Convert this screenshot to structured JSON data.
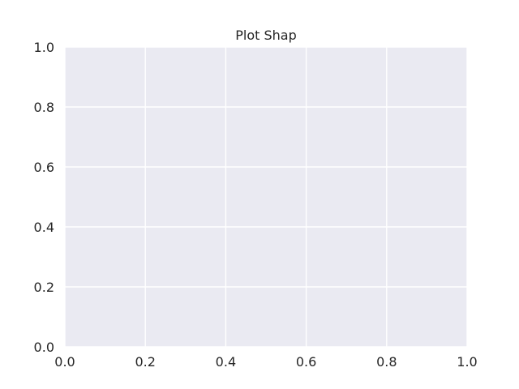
{
  "chart_data": {
    "type": "line",
    "title": "Plot Shap",
    "xlabel": "",
    "ylabel": "",
    "xlim": [
      0.0,
      1.0
    ],
    "ylim": [
      0.0,
      1.0
    ],
    "x_ticks": [
      "0.0",
      "0.2",
      "0.4",
      "0.6",
      "0.8",
      "1.0"
    ],
    "y_ticks": [
      "0.0",
      "0.2",
      "0.4",
      "0.6",
      "0.8",
      "1.0"
    ],
    "series": [],
    "grid": true,
    "colors": {
      "plot_background": "#eaeaf2",
      "grid": "#ffffff",
      "text": "#262626"
    }
  }
}
